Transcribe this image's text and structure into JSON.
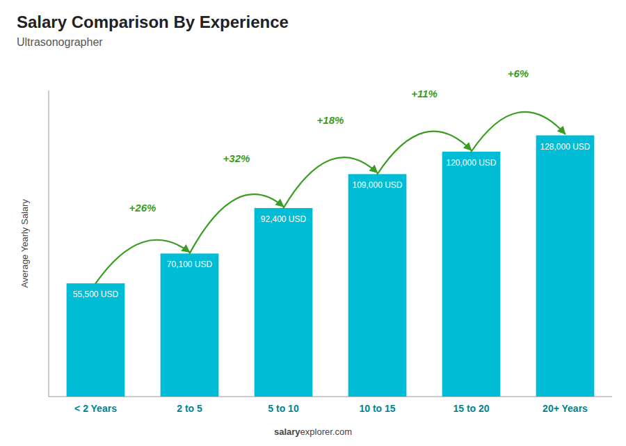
{
  "chart_data": {
    "type": "bar",
    "title": "Salary Comparison By Experience",
    "subtitle": "Ultrasonographer",
    "ylabel": "Average Yearly Salary",
    "categories": [
      "< 2 Years",
      "2 to 5",
      "5 to 10",
      "10 to 15",
      "15 to 20",
      "20+ Years"
    ],
    "values": [
      55500,
      70100,
      92400,
      109000,
      120000,
      128000
    ],
    "value_labels": [
      "55,500 USD",
      "70,100 USD",
      "92,400 USD",
      "109,000 USD",
      "120,000 USD",
      "128,000 USD"
    ],
    "data_labels": true,
    "annotations": [
      "+26%",
      "+32%",
      "+18%",
      "+11%",
      "+6%"
    ],
    "footer": [
      "salary",
      "explorer.com"
    ],
    "color": "#00bcd4",
    "ylim": [
      0,
      150000
    ],
    "grid": false,
    "tick_labels": "x"
  }
}
